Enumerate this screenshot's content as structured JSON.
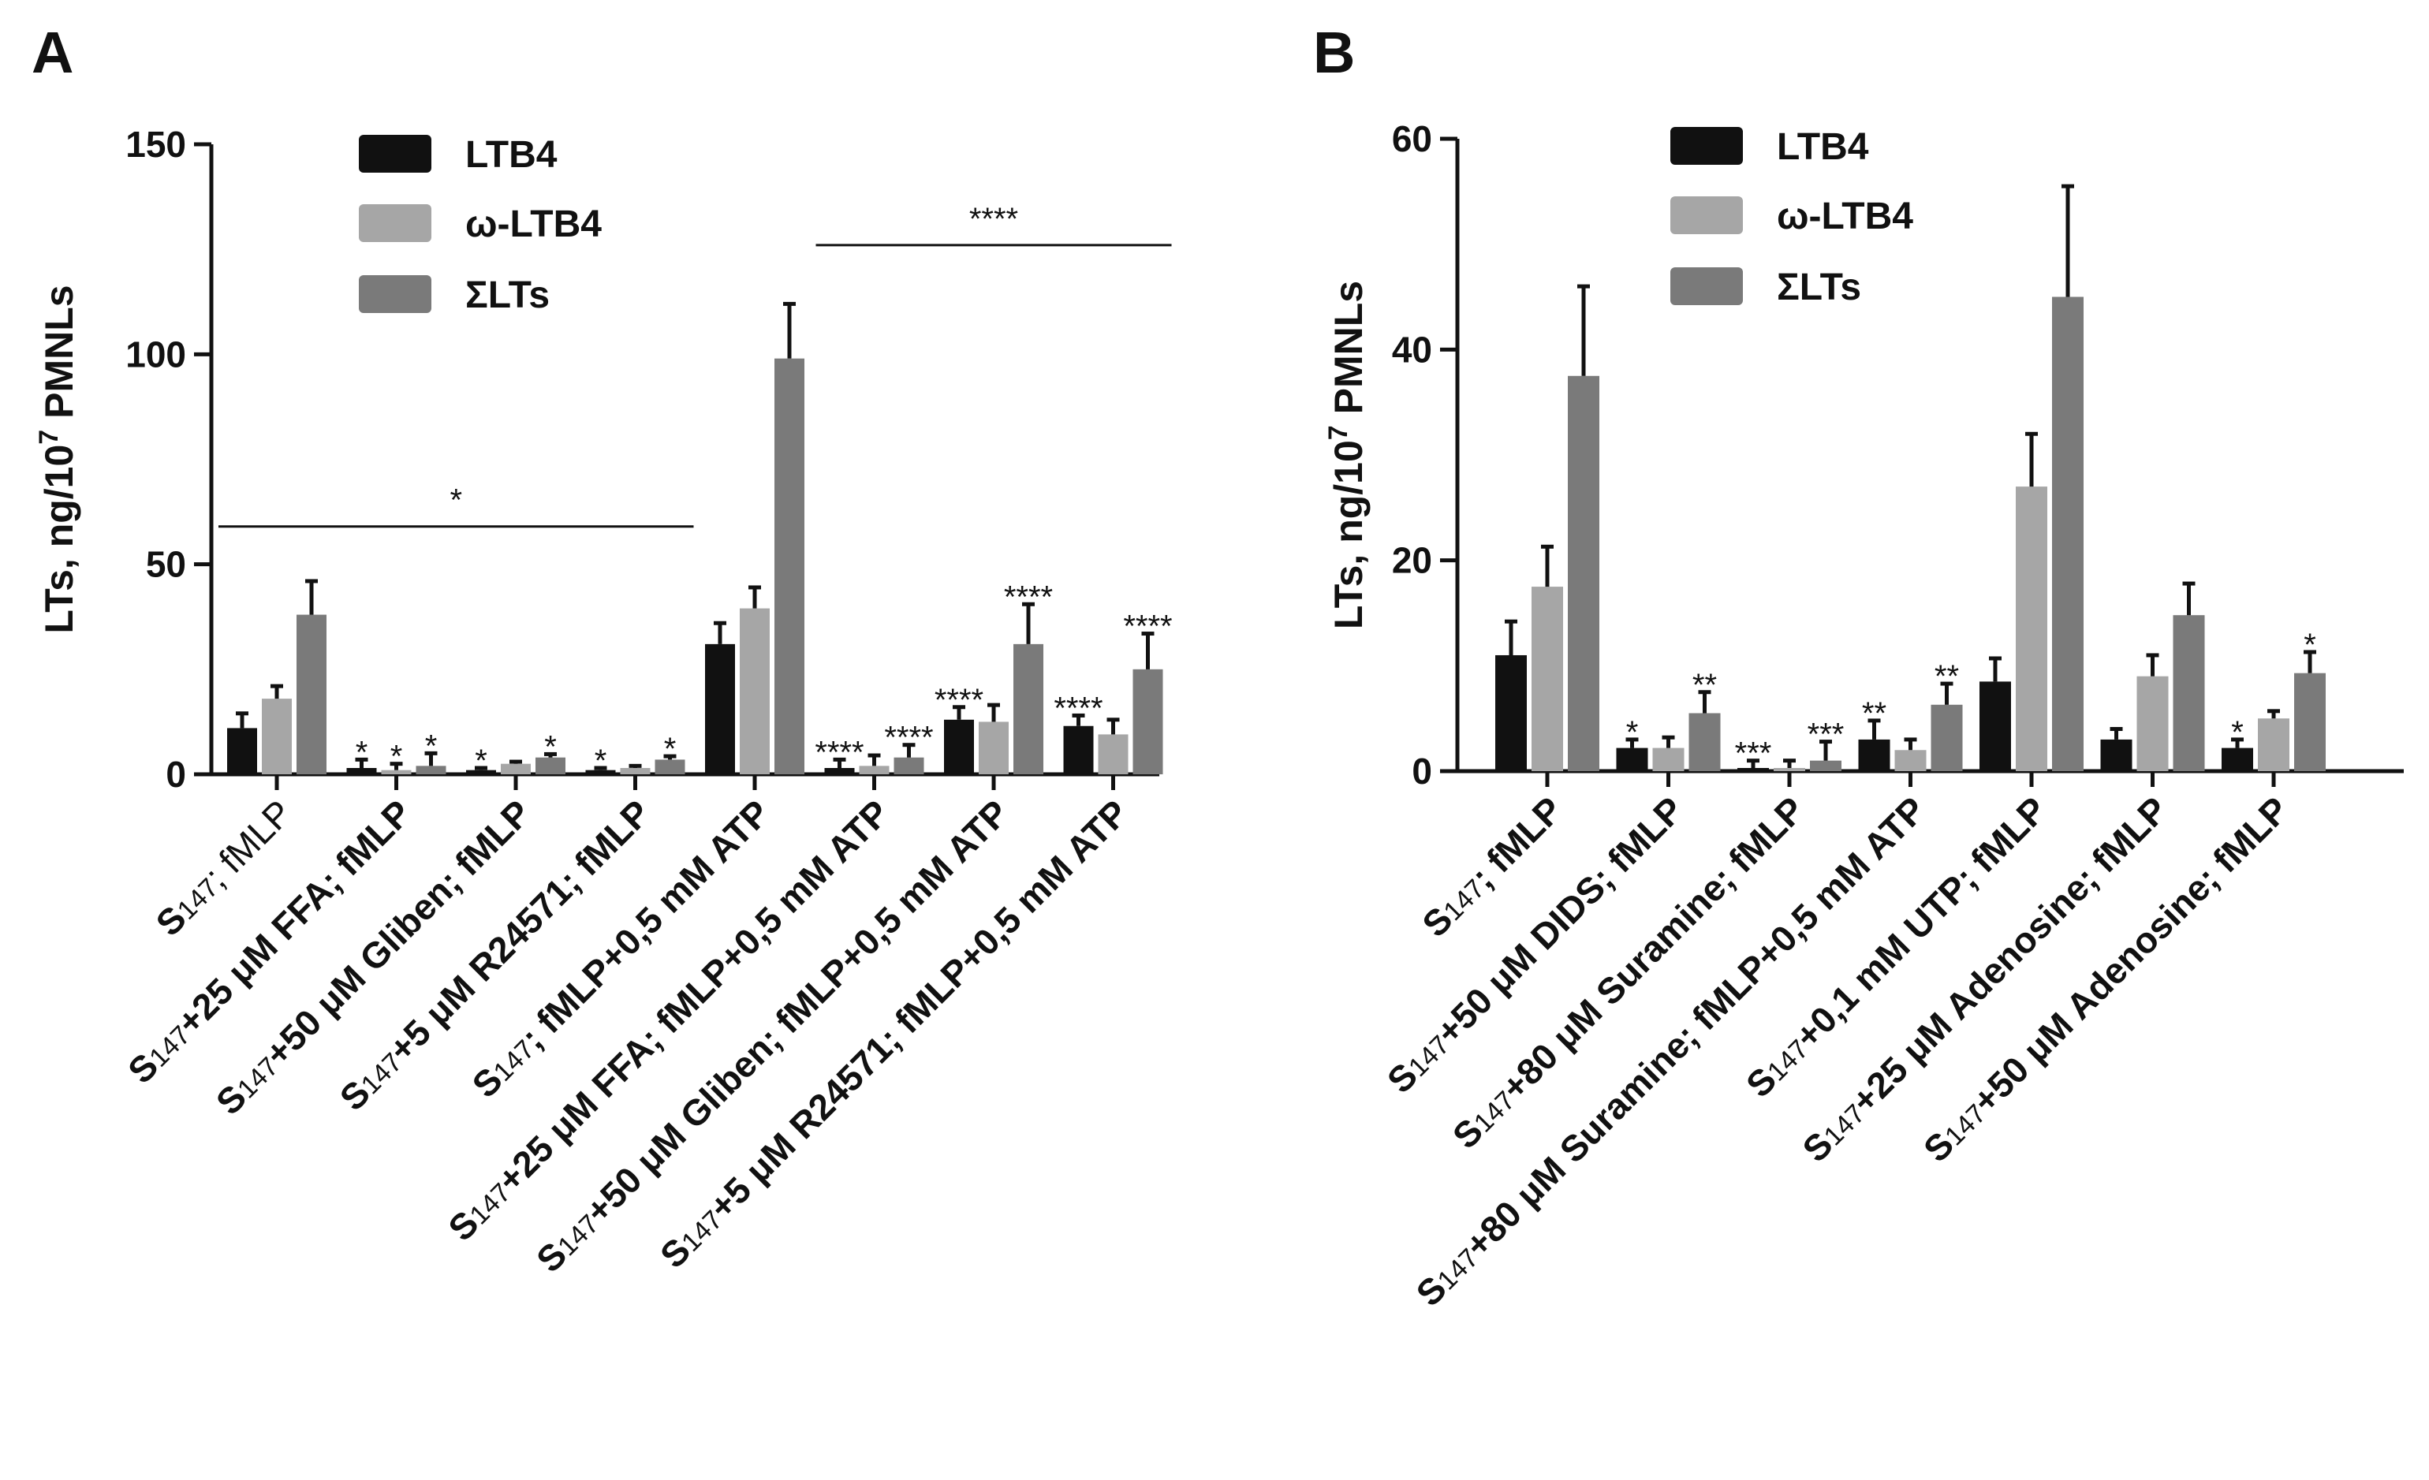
{
  "colors": {
    "LTB4": "#111111",
    "omega_LTB4": "#a6a6a6",
    "sum_LTs": "#7a7a7a",
    "axis": "#111111"
  },
  "chart_data": [
    {
      "panel": "A",
      "type": "bar",
      "ylabel_main": "LTs, ng/10",
      "ylabel_sup": "7",
      "ylabel_tail": " PMNLs",
      "ylim": [
        0,
        150
      ],
      "yticks": [
        0,
        50,
        100,
        150
      ],
      "legend": [
        "LTB4",
        "ω-LTB4",
        "ΣLTs"
      ],
      "categories": [
        {
          "sub": "147",
          "rest": "; fMLP",
          "plain": true
        },
        {
          "sub": "147",
          "rest": "+25 μM FFA; fMLP"
        },
        {
          "sub": "147",
          "rest": "+50 μM Gliben; fMLP"
        },
        {
          "sub": "147",
          "rest": "+5 μM R24571; fMLP"
        },
        {
          "sub": "147",
          "rest": "; fMLP+0,5 mM ATP"
        },
        {
          "sub": "147",
          "rest": "+25 μM FFA; fMLP+0,5 mM ATP"
        },
        {
          "sub": "147",
          "rest": "+50 μM Gliben; fMLP+0,5 mM ATP"
        },
        {
          "sub": "147",
          "rest": "+5 μM R24571; fMLP+0,5 mM ATP"
        }
      ],
      "series": [
        {
          "name": "LTB4",
          "values": [
            11,
            1.5,
            1,
            1,
            31,
            1.5,
            13,
            11.5
          ],
          "errors": [
            3.5,
            2,
            0.5,
            0.5,
            5,
            2,
            3,
            2.5
          ]
        },
        {
          "name": "ω-LTB4",
          "values": [
            18,
            1,
            2.5,
            1.5,
            39.5,
            2,
            12.5,
            9.5
          ],
          "errors": [
            3,
            1.5,
            0.5,
            0.5,
            5,
            2.5,
            4,
            3.5
          ]
        },
        {
          "name": "ΣLTs",
          "values": [
            38,
            2,
            4,
            3.5,
            99,
            4,
            31,
            25
          ],
          "errors": [
            8,
            3,
            0.8,
            0.8,
            13,
            3,
            9.5,
            8.5
          ]
        }
      ],
      "significance": [
        [
          null,
          null,
          null
        ],
        [
          "*",
          "*",
          "*"
        ],
        [
          "*",
          null,
          "*"
        ],
        [
          "*",
          null,
          "*"
        ],
        [
          null,
          null,
          null
        ],
        [
          "****",
          null,
          "****"
        ],
        [
          "****",
          null,
          "****"
        ],
        [
          "****",
          null,
          "****"
        ]
      ],
      "group_brackets": [
        {
          "label": "*",
          "from": 0,
          "to": 3,
          "y": 59
        },
        {
          "label": "****",
          "from": 5,
          "to": 7,
          "y": 126
        }
      ]
    },
    {
      "panel": "B",
      "type": "bar",
      "ylabel_main": "LTs, ng/10",
      "ylabel_sup": "7",
      "ylabel_tail": " PMNLs",
      "ylim": [
        0,
        60
      ],
      "yticks": [
        0,
        20,
        40,
        60
      ],
      "legend": [
        "LTB4",
        "ω-LTB4",
        "ΣLTs"
      ],
      "categories": [
        {
          "sub": "147",
          "rest": "; fMLP"
        },
        {
          "sub": "147",
          "rest": "+50 μM DIDS; fMLP"
        },
        {
          "sub": "147",
          "rest": "+80 μM Suramine; fMLP"
        },
        {
          "sub": "147",
          "rest": "+80 μM Suramine; fMLP+0,5 mM ATP"
        },
        {
          "sub": "147",
          "rest": "+0,1 mM UTP; fMLP"
        },
        {
          "sub": "147",
          "rest": "+25 μM Adenosine; fMLP"
        },
        {
          "sub": "147",
          "rest": "+50 μM Adenosine; fMLP"
        }
      ],
      "series": [
        {
          "name": "LTB4",
          "values": [
            11,
            2.2,
            0.3,
            3,
            8.5,
            3,
            2.2
          ],
          "errors": [
            3.2,
            0.8,
            0.7,
            1.8,
            2.2,
            1,
            0.8
          ]
        },
        {
          "name": "ω-LTB4",
          "values": [
            17.5,
            2.2,
            0.3,
            2,
            27,
            9,
            5
          ],
          "errors": [
            3.8,
            1,
            0.7,
            1,
            5,
            2,
            0.7
          ]
        },
        {
          "name": "ΣLTs",
          "values": [
            37.5,
            5.5,
            1,
            6.3,
            45,
            14.8,
            9.3
          ],
          "errors": [
            8.5,
            2,
            1.8,
            2,
            10.5,
            3,
            2
          ]
        }
      ],
      "significance": [
        [
          null,
          null,
          null
        ],
        [
          "*",
          null,
          "**"
        ],
        [
          "***",
          null,
          "***"
        ],
        [
          "**",
          null,
          "**"
        ],
        [
          null,
          null,
          null
        ],
        [
          null,
          null,
          null
        ],
        [
          "*",
          null,
          "*"
        ]
      ],
      "group_brackets": []
    }
  ]
}
